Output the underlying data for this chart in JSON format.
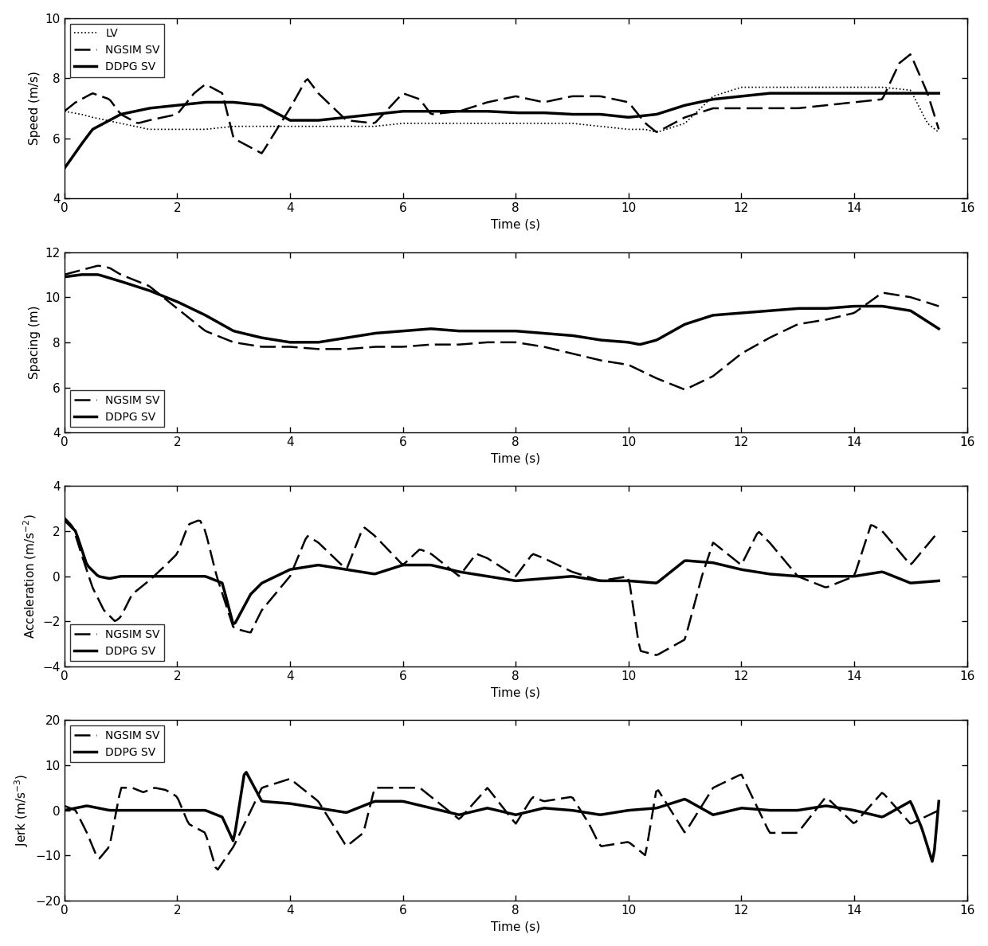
{
  "figsize": [
    12.4,
    11.88
  ],
  "dpi": 100,
  "background_color": "#ffffff",
  "xlim": [
    0,
    16
  ],
  "xticks": [
    0,
    2,
    4,
    6,
    8,
    10,
    12,
    14,
    16
  ],
  "plot1": {
    "ylabel": "Speed (m/s)",
    "xlabel": "Time (s)",
    "ylim": [
      4,
      10
    ],
    "yticks": [
      4,
      6,
      8,
      10
    ],
    "legend": [
      "LV",
      "NGSIM SV",
      "DDPG SV"
    ],
    "legend_loc": "upper left"
  },
  "plot2": {
    "ylabel": "Spacing (m)",
    "xlabel": "Time (s)",
    "ylim": [
      4,
      12
    ],
    "yticks": [
      4,
      6,
      8,
      10,
      12
    ],
    "legend": [
      "NGSIM SV",
      "DDPG SV"
    ],
    "legend_loc": "lower left"
  },
  "plot3": {
    "ylabel": "Acceleration (m/s-2)",
    "xlabel": "Time (s)",
    "ylim": [
      -4,
      4
    ],
    "yticks": [
      -4,
      -2,
      0,
      2,
      4
    ],
    "legend": [
      "NGSIM SV",
      "DDPG SV"
    ],
    "legend_loc": "lower left"
  },
  "plot4": {
    "ylabel": "Jerk (m/s-3)",
    "xlabel": "Time (s)",
    "ylim": [
      -20,
      20
    ],
    "yticks": [
      -20,
      -10,
      0,
      10,
      20
    ],
    "legend": [
      "NGSIM SV",
      "DDPG SV"
    ],
    "legend_loc": "upper left"
  },
  "line_lv_lw": 1.2,
  "line_ngsim_lw": 1.8,
  "line_ddpg_lw": 2.5,
  "color": "#000000",
  "font_size": 11,
  "legend_font_size": 10
}
